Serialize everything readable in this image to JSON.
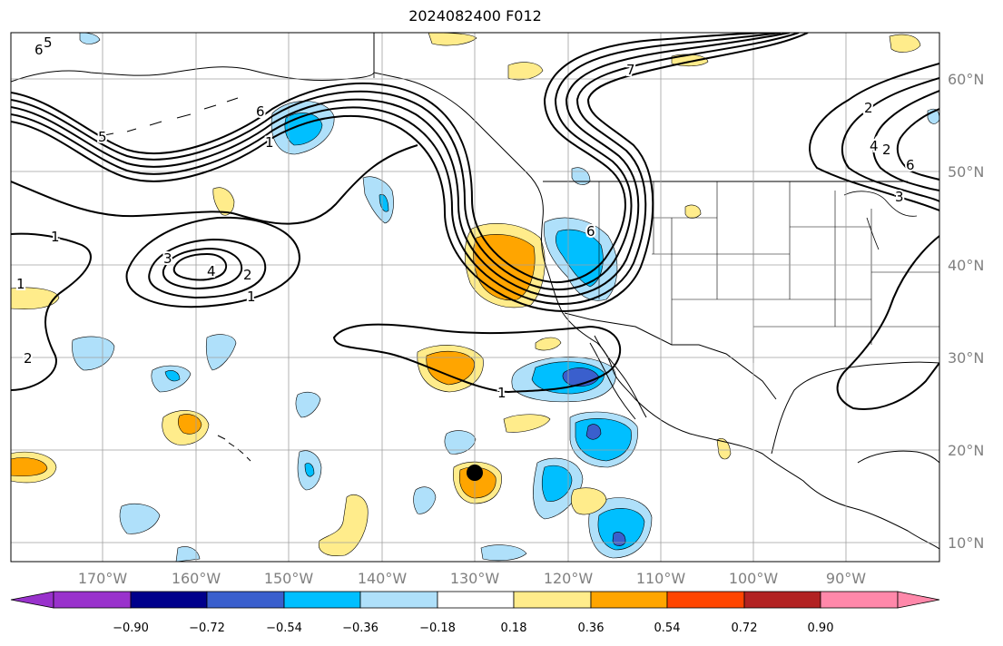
{
  "title": "2024082400 F012",
  "lat_labels": [
    "60°N",
    "50°N",
    "40°N",
    "30°N",
    "20°N",
    "10°N"
  ],
  "lon_labels": [
    "170°W",
    "160°W",
    "150°W",
    "140°W",
    "130°W",
    "120°W",
    "110°W",
    "100°W",
    "90°W"
  ],
  "colorbar": {
    "ticks": [
      "−0.90",
      "−0.72",
      "−0.54",
      "−0.36",
      "−0.18",
      "0.18",
      "0.36",
      "0.54",
      "0.72",
      "0.90"
    ],
    "colors": [
      "#9932cc",
      "#00008b",
      "#3a5fcd",
      "#00bfff",
      "#afe0fa",
      "#ffffff",
      "#ffec8b",
      "#ffa500",
      "#ff4500",
      "#b22222",
      "#ff88aa"
    ]
  },
  "contour_labels": [
    "6",
    "5",
    "6",
    "1",
    "5",
    "1",
    "3",
    "4",
    "2",
    "1",
    "1",
    "2",
    "1",
    "7",
    "6",
    "2",
    "6",
    "4",
    "2",
    "3"
  ],
  "storm_marker": {
    "lat": 17.5,
    "lon": -130.4
  }
}
